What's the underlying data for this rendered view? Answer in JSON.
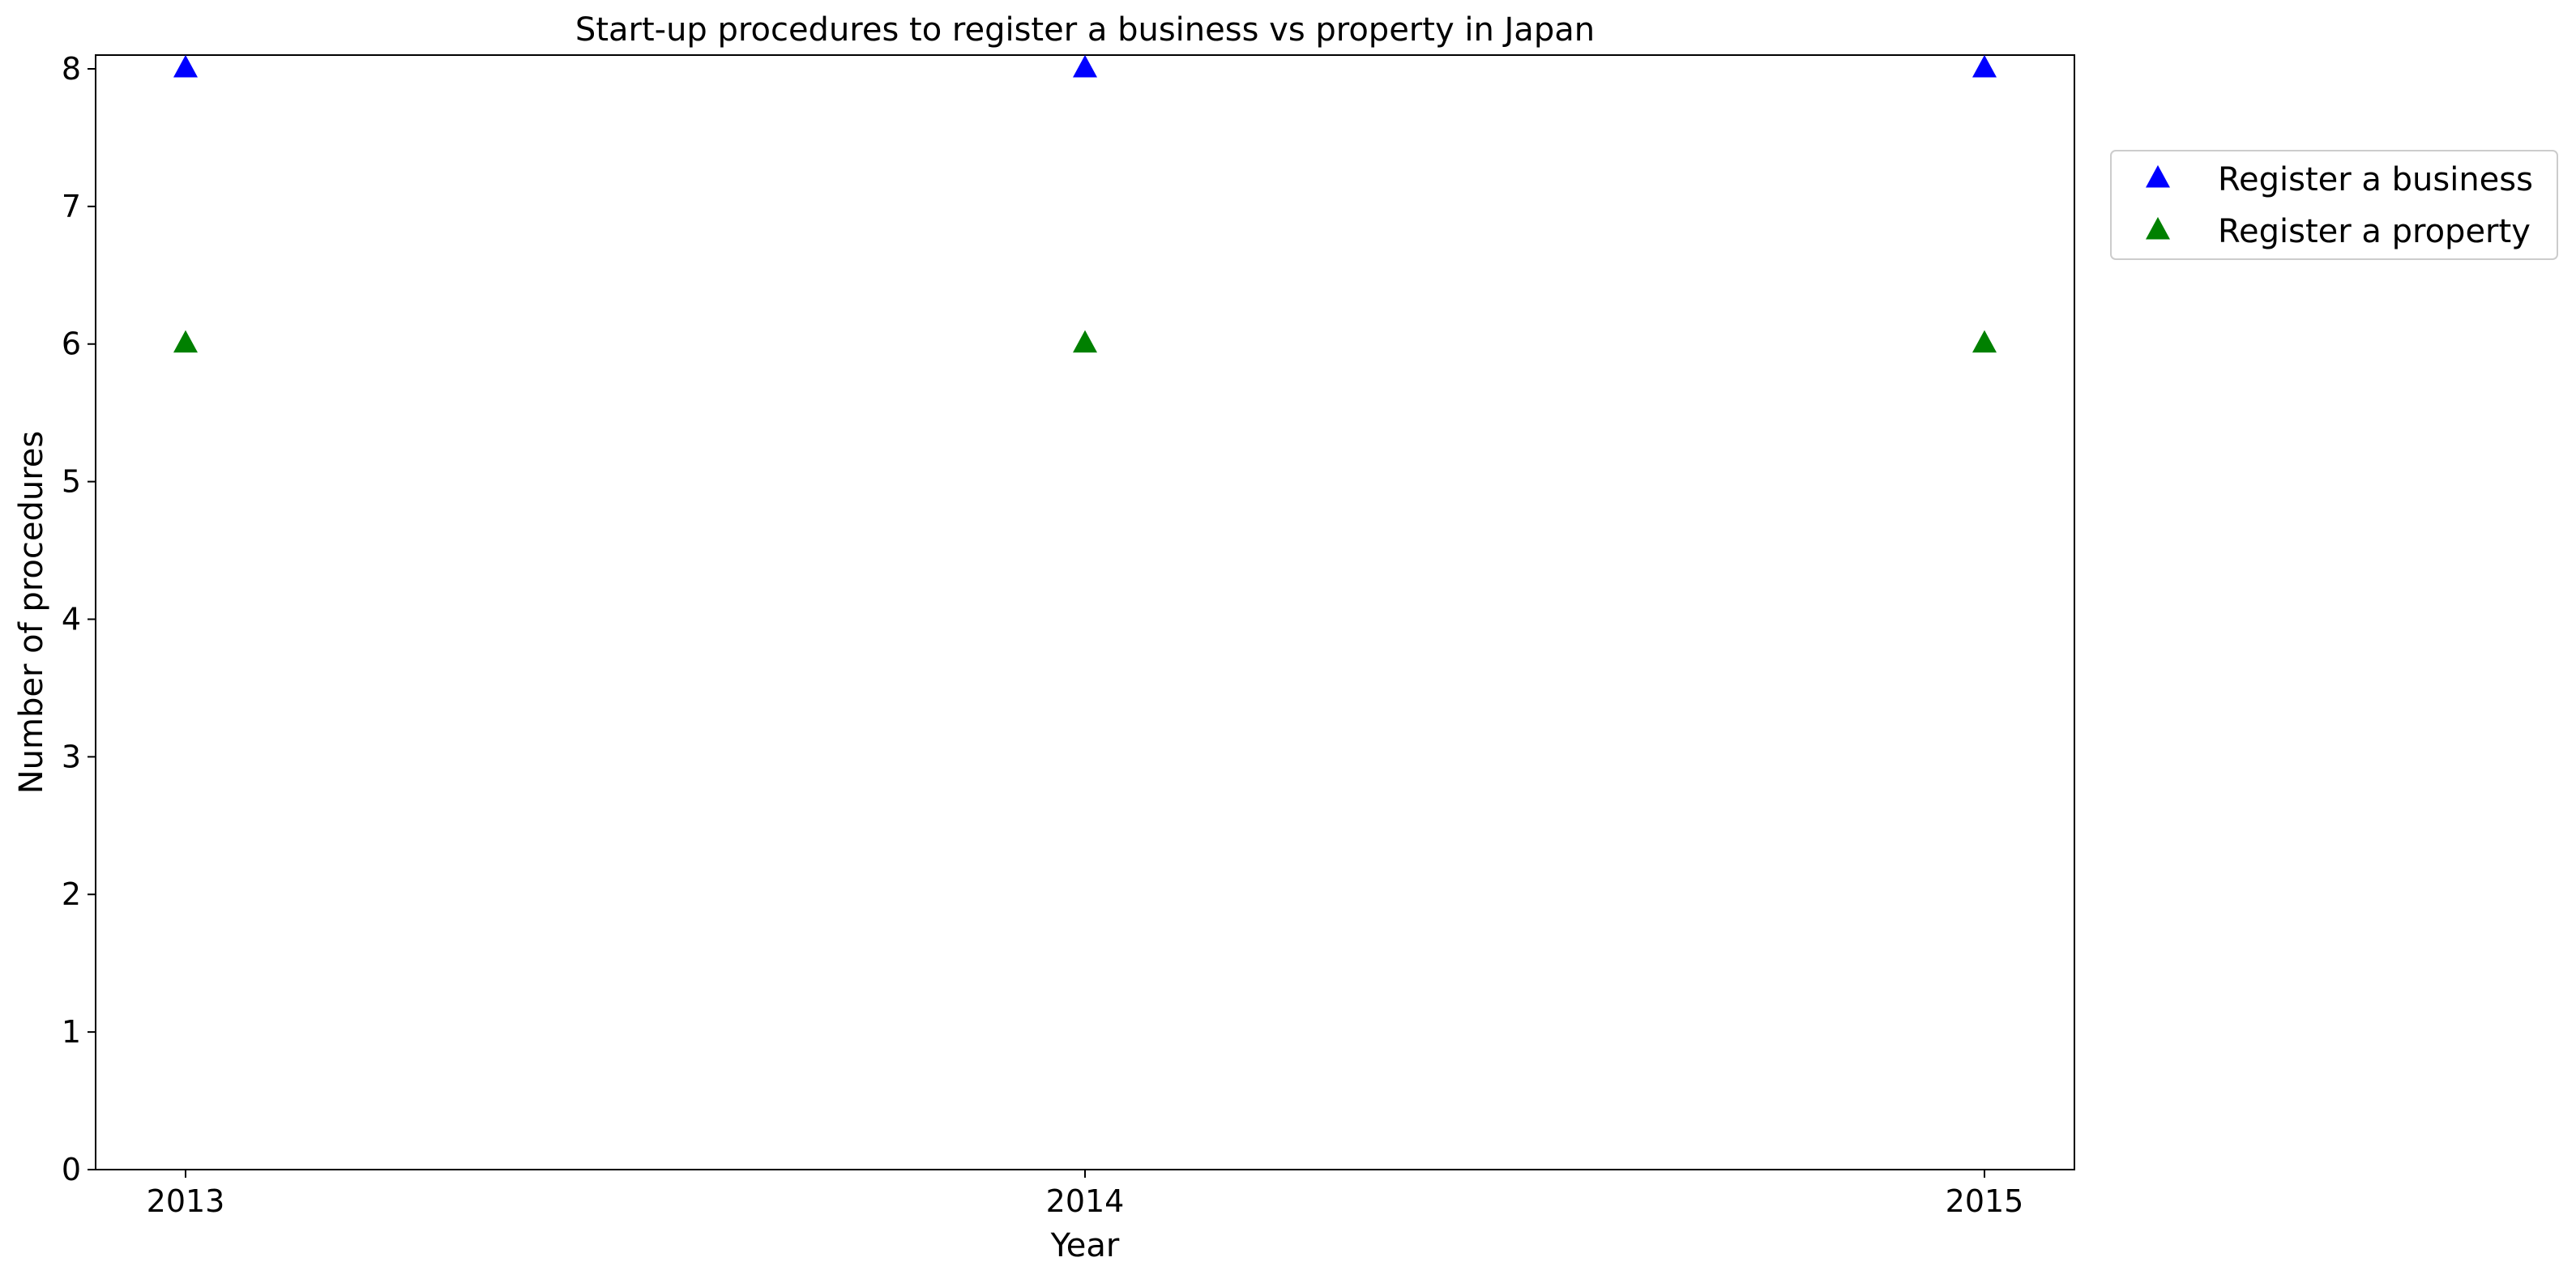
{
  "chart_data": {
    "type": "scatter",
    "title": "Start-up procedures to register a business vs property in Japan",
    "xlabel": "Year",
    "ylabel": "Number of procedures",
    "x": [
      2013,
      2014,
      2015
    ],
    "x_tick_labels": [
      "2013",
      "2014",
      "2015"
    ],
    "xlim": [
      2012.9,
      2015.1
    ],
    "ylim": [
      0,
      8.1
    ],
    "y_ticks": [
      0,
      1,
      2,
      3,
      4,
      5,
      6,
      7,
      8
    ],
    "y_tick_labels": [
      "0",
      "1",
      "2",
      "3",
      "4",
      "5",
      "6",
      "7",
      "8"
    ],
    "grid": false,
    "legend_position": "outside-right-top",
    "marker": "triangle-up",
    "series": [
      {
        "name": "Register a business",
        "values": [
          8,
          8,
          8
        ],
        "color": "#0000ff"
      },
      {
        "name": "Register a property",
        "values": [
          6,
          6,
          6
        ],
        "color": "#008000"
      }
    ]
  }
}
